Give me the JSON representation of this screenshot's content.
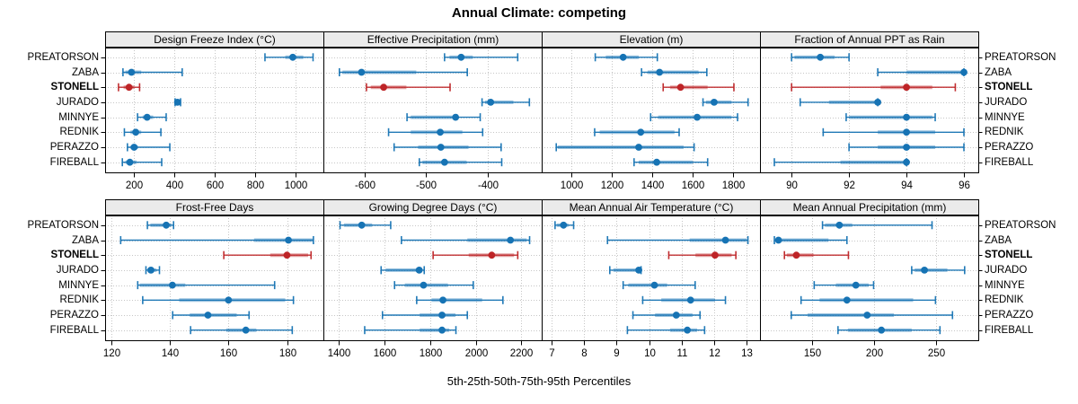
{
  "title": "Annual Climate: competing",
  "caption": "5th-25th-50th-75th-95th Percentiles",
  "colors": {
    "series_blue": "#1673B4",
    "series_red": "#BE2427",
    "band_opacity": 0.42,
    "grid": "#c6c6c6",
    "strip_bg": "#ebebeb",
    "panel_border": "#000000",
    "background": "#ffffff"
  },
  "chart_data": {
    "type": "dotplot",
    "subtype": "percentile-intervals",
    "percentiles": [
      5,
      25,
      50,
      75,
      95
    ],
    "categories": [
      "PREATORSON",
      "ZABA",
      "STONELL",
      "JURADO",
      "MINNYE",
      "REDNIK",
      "PERAZZO",
      "FIREBALL"
    ],
    "highlight_category": "STONELL",
    "y_labels_both_sides": true,
    "grid": "dotted",
    "layout": [
      4,
      2
    ],
    "panels": [
      {
        "title": "Design Freeze Index (°C)",
        "xlim": [
          60,
          1136
        ],
        "ticks": [
          200,
          400,
          600,
          800,
          1000
        ],
        "series": [
          {
            "name": "PREATORSON",
            "values": [
              848,
              948,
              985,
              1037,
              1085
            ]
          },
          {
            "name": "ZABA",
            "values": [
              148,
              160,
              190,
              238,
              440
            ]
          },
          {
            "name": "STONELL",
            "values": [
              126,
              151,
              178,
              204,
              230
            ]
          },
          {
            "name": "JURADO",
            "values": [
              405,
              409,
              417,
              425,
              432
            ]
          },
          {
            "name": "MINNYE",
            "values": [
              220,
              245,
              267,
              297,
              361
            ]
          },
          {
            "name": "REDNIK",
            "values": [
              155,
              185,
              211,
              238,
              335
            ]
          },
          {
            "name": "PERAZZO",
            "values": [
              170,
              185,
              203,
              222,
              379
            ]
          },
          {
            "name": "FIREBALL",
            "values": [
              145,
              160,
              182,
              215,
              339
            ]
          }
        ]
      },
      {
        "title": "Effective Precipitation (mm)",
        "xlim": [
          -667,
          -312
        ],
        "ticks": [
          -600,
          -500,
          -400
        ],
        "series": [
          {
            "name": "PREATORSON",
            "values": [
              -470,
              -462,
              -443,
              -424,
              -351
            ]
          },
          {
            "name": "ZABA",
            "values": [
              -641,
              -636,
              -605,
              -516,
              -433
            ]
          },
          {
            "name": "STONELL",
            "values": [
              -597,
              -590,
              -569,
              -532,
              -461
            ]
          },
          {
            "name": "JURADO",
            "values": [
              -409,
              -404,
              -395,
              -358,
              -332
            ]
          },
          {
            "name": "MINNYE",
            "values": [
              -531,
              -525,
              -452,
              -448,
              -412
            ]
          },
          {
            "name": "REDNIK",
            "values": [
              -561,
              -525,
              -477,
              -441,
              -408
            ]
          },
          {
            "name": "PERAZZO",
            "values": [
              -552,
              -513,
              -476,
              -431,
              -378
            ]
          },
          {
            "name": "FIREBALL",
            "values": [
              -511,
              -506,
              -470,
              -434,
              -377
            ]
          }
        ]
      },
      {
        "title": "Elevation (m)",
        "xlim": [
          855,
          1935
        ],
        "ticks": [
          1000,
          1200,
          1400,
          1600,
          1800
        ],
        "series": [
          {
            "name": "PREATORSON",
            "values": [
              1120,
              1172,
              1258,
              1335,
              1427
            ]
          },
          {
            "name": "ZABA",
            "values": [
              1349,
              1379,
              1438,
              1631,
              1672
            ]
          },
          {
            "name": "STONELL",
            "values": [
              1456,
              1490,
              1542,
              1676,
              1806
            ]
          },
          {
            "name": "JURADO",
            "values": [
              1653,
              1668,
              1708,
              1794,
              1876
            ]
          },
          {
            "name": "MINNYE",
            "values": [
              1394,
              1431,
              1624,
              1794,
              1824
            ]
          },
          {
            "name": "REDNIK",
            "values": [
              1117,
              1142,
              1345,
              1512,
              1535
            ]
          },
          {
            "name": "PERAZZO",
            "values": [
              927,
              934,
              1335,
              1557,
              1609
            ]
          },
          {
            "name": "FIREBALL",
            "values": [
              1312,
              1335,
              1424,
              1602,
              1676
            ]
          }
        ]
      },
      {
        "title": "Fraction of Annual PPT as Rain",
        "xlim": [
          88.9,
          96.5
        ],
        "ticks": [
          90,
          92,
          94,
          96
        ],
        "series": [
          {
            "name": "PREATORSON",
            "values": [
              90.0,
              90.1,
              91.0,
              91.5,
              92.0
            ]
          },
          {
            "name": "ZABA",
            "values": [
              93.0,
              94.0,
              96.0,
              96.0,
              96.0
            ]
          },
          {
            "name": "STONELL",
            "values": [
              90.0,
              93.1,
              94.0,
              94.9,
              95.7
            ]
          },
          {
            "name": "JURADO",
            "values": [
              90.3,
              91.3,
              93.0,
              93.0,
              93.0
            ]
          },
          {
            "name": "MINNYE",
            "values": [
              91.9,
              92.0,
              94.0,
              94.9,
              95.0
            ]
          },
          {
            "name": "REDNIK",
            "values": [
              91.1,
              93.0,
              94.0,
              95.0,
              96.0
            ]
          },
          {
            "name": "PERAZZO",
            "values": [
              92.0,
              93.0,
              94.0,
              95.0,
              96.0
            ]
          },
          {
            "name": "FIREBALL",
            "values": [
              89.4,
              91.7,
              94.0,
              94.0,
              94.0
            ]
          }
        ]
      },
      {
        "title": "Frost-Free Days",
        "xlim": [
          118,
          192.3
        ],
        "ticks": [
          120,
          140,
          160,
          180
        ],
        "series": [
          {
            "name": "PREATORSON",
            "values": [
              132.4,
              133.4,
              138.8,
              140.6,
              141.3
            ]
          },
          {
            "name": "ZABA",
            "values": [
              123.3,
              168.7,
              180.4,
              188.6,
              188.9
            ]
          },
          {
            "name": "STONELL",
            "values": [
              158.4,
              174.2,
              179.9,
              187.1,
              188.1
            ]
          },
          {
            "name": "JURADO",
            "values": [
              131.9,
              132.4,
              133.6,
              135.5,
              136.5
            ]
          },
          {
            "name": "MINNYE",
            "values": [
              129.1,
              129.8,
              140.9,
              145.3,
              175.7
            ]
          },
          {
            "name": "REDNIK",
            "values": [
              130.8,
              143.2,
              160.0,
              179.3,
              182.1
            ]
          },
          {
            "name": "PERAZZO",
            "values": [
              141.0,
              146.8,
              153.0,
              162.8,
              167.0
            ]
          },
          {
            "name": "FIREBALL",
            "values": [
              147.1,
              159.2,
              165.9,
              169.5,
              181.7
            ]
          }
        ]
      },
      {
        "title": "Growing Degree Days (°C)",
        "xlim": [
          1332,
          2289
        ],
        "ticks": [
          1400,
          1600,
          1800,
          2000,
          2200
        ],
        "series": [
          {
            "name": "PREATORSON",
            "values": [
              1405,
              1422,
              1500,
              1546,
              1627
            ]
          },
          {
            "name": "ZABA",
            "values": [
              1674,
              1963,
              2152,
              2223,
              2236
            ]
          },
          {
            "name": "STONELL",
            "values": [
              1813,
              1969,
              2070,
              2168,
              2184
            ]
          },
          {
            "name": "JURADO",
            "values": [
              1585,
              1605,
              1752,
              1754,
              1774
            ]
          },
          {
            "name": "MINNYE",
            "values": [
              1644,
              1689,
              1771,
              1878,
              1989
            ]
          },
          {
            "name": "REDNIK",
            "values": [
              1741,
              1806,
              1856,
              2028,
              2119
            ]
          },
          {
            "name": "PERAZZO",
            "values": [
              1591,
              1754,
              1852,
              1911,
              1963
            ]
          },
          {
            "name": "FIREBALL",
            "values": [
              1513,
              1754,
              1852,
              1884,
              1913
            ]
          }
        ]
      },
      {
        "title": "Mean Annual Air Temperature (°C)",
        "xlim": [
          6.7,
          13.4
        ],
        "ticks": [
          7,
          8,
          9,
          10,
          11,
          12,
          13
        ],
        "series": [
          {
            "name": "PREATORSON",
            "values": [
              7.11,
              7.16,
              7.37,
              7.52,
              7.68
            ]
          },
          {
            "name": "ZABA",
            "values": [
              8.72,
              11.24,
              12.34,
              12.99,
              13.03
            ]
          },
          {
            "name": "STONELL",
            "values": [
              10.6,
              11.42,
              12.02,
              12.53,
              12.66
            ]
          },
          {
            "name": "JURADO",
            "values": [
              8.79,
              8.9,
              9.68,
              9.71,
              9.75
            ]
          },
          {
            "name": "MINNYE",
            "values": [
              9.2,
              9.36,
              10.16,
              10.55,
              11.41
            ]
          },
          {
            "name": "REDNIK",
            "values": [
              9.8,
              10.37,
              11.27,
              12.02,
              12.34
            ]
          },
          {
            "name": "PERAZZO",
            "values": [
              9.5,
              10.18,
              10.83,
              11.33,
              11.56
            ]
          },
          {
            "name": "FIREBALL",
            "values": [
              9.33,
              10.64,
              11.17,
              11.47,
              11.7
            ]
          }
        ]
      },
      {
        "title": "Mean Annual Precipitation (mm)",
        "xlim": [
          108,
          284
        ],
        "ticks": [
          150,
          200,
          250
        ],
        "series": [
          {
            "name": "PREATORSON",
            "values": [
              158.4,
              160.4,
              172.0,
              182.4,
              246.7
            ]
          },
          {
            "name": "ZABA",
            "values": [
              119.6,
              120.5,
              122.9,
              163.2,
              178.1
            ]
          },
          {
            "name": "STONELL",
            "values": [
              127.7,
              129.6,
              137.3,
              151.2,
              179.3
            ]
          },
          {
            "name": "JURADO",
            "values": [
              230.3,
              232.7,
              240.6,
              259.1,
              273.0
            ]
          },
          {
            "name": "MINNYE",
            "values": [
              151.7,
              169.2,
              185.3,
              195.6,
              199.6
            ]
          },
          {
            "name": "REDNIK",
            "values": [
              141.1,
              156.0,
              178.1,
              231.5,
              249.5
            ]
          },
          {
            "name": "PERAZZO",
            "values": [
              133.2,
              146.4,
              194.4,
              216.0,
              263.2
            ]
          },
          {
            "name": "FIREBALL",
            "values": [
              170.9,
              178.8,
              205.9,
              230.3,
              253.1
            ]
          }
        ]
      }
    ]
  }
}
